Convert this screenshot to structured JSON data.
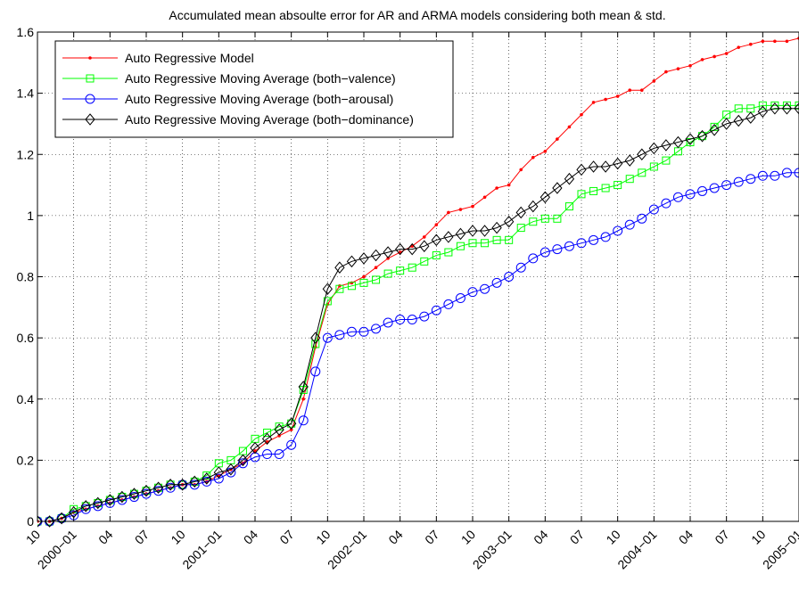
{
  "chart_data": {
    "type": "line",
    "title": "Accumulated mean absoulte error for AR and ARMA models considering both mean & std.",
    "xlabel": "",
    "ylabel": "",
    "ylim": [
      0,
      1.6
    ],
    "xlim": [
      "1999-10",
      "2005-01"
    ],
    "yticks": [
      "0",
      "0.2",
      "0.4",
      "0.6",
      "0.8",
      "1",
      "1.2",
      "1.4",
      "1.6"
    ],
    "xticks": [
      "10",
      "2000−01",
      "04",
      "07",
      "10",
      "2001−01",
      "04",
      "07",
      "10",
      "2002−01",
      "04",
      "07",
      "10",
      "2003−01",
      "04",
      "07",
      "10",
      "2004−01",
      "04",
      "07",
      "10",
      "2005−01"
    ],
    "grid": true,
    "legend_position": "top-left",
    "series": [
      {
        "name": "Auto Regressive Model",
        "color": "#ff0000",
        "marker": "dot",
        "x": [
          "1999-10",
          "1999-11",
          "1999-12",
          "2000-01",
          "2000-02",
          "2000-03",
          "2000-04",
          "2000-05",
          "2000-06",
          "2000-07",
          "2000-08",
          "2000-09",
          "2000-10",
          "2000-11",
          "2000-12",
          "2001-01",
          "2001-02",
          "2001-03",
          "2001-04",
          "2001-05",
          "2001-06",
          "2001-07",
          "2001-08",
          "2001-09",
          "2001-10",
          "2001-11",
          "2001-12",
          "2002-01",
          "2002-02",
          "2002-03",
          "2002-04",
          "2002-05",
          "2002-06",
          "2002-07",
          "2002-08",
          "2002-09",
          "2002-10",
          "2002-11",
          "2002-12",
          "2003-01",
          "2003-02",
          "2003-03",
          "2003-04",
          "2003-05",
          "2003-06",
          "2003-07",
          "2003-08",
          "2003-09",
          "2003-10",
          "2003-11",
          "2003-12",
          "2004-01",
          "2004-02",
          "2004-03",
          "2004-04",
          "2004-05",
          "2004-06",
          "2004-07",
          "2004-08",
          "2004-09",
          "2004-10",
          "2004-11",
          "2004-12",
          "2005-01"
        ],
        "y": [
          0,
          0,
          0.01,
          0.03,
          0.04,
          0.05,
          0.06,
          0.07,
          0.08,
          0.09,
          0.1,
          0.11,
          0.12,
          0.12,
          0.13,
          0.15,
          0.17,
          0.19,
          0.23,
          0.26,
          0.28,
          0.3,
          0.4,
          0.57,
          0.71,
          0.77,
          0.78,
          0.8,
          0.83,
          0.86,
          0.88,
          0.9,
          0.93,
          0.97,
          1.01,
          1.02,
          1.03,
          1.06,
          1.09,
          1.1,
          1.15,
          1.19,
          1.21,
          1.25,
          1.29,
          1.33,
          1.37,
          1.38,
          1.39,
          1.41,
          1.41,
          1.44,
          1.47,
          1.48,
          1.49,
          1.51,
          1.52,
          1.53,
          1.55,
          1.56,
          1.57,
          1.57,
          1.57,
          1.58
        ]
      },
      {
        "name": "Auto Regressive Moving Average (both−valence)",
        "color": "#00ff00",
        "marker": "square",
        "x": [
          "1999-10",
          "1999-11",
          "1999-12",
          "2000-01",
          "2000-02",
          "2000-03",
          "2000-04",
          "2000-05",
          "2000-06",
          "2000-07",
          "2000-08",
          "2000-09",
          "2000-10",
          "2000-11",
          "2000-12",
          "2001-01",
          "2001-02",
          "2001-03",
          "2001-04",
          "2001-05",
          "2001-06",
          "2001-07",
          "2001-08",
          "2001-09",
          "2001-10",
          "2001-11",
          "2001-12",
          "2002-01",
          "2002-02",
          "2002-03",
          "2002-04",
          "2002-05",
          "2002-06",
          "2002-07",
          "2002-08",
          "2002-09",
          "2002-10",
          "2002-11",
          "2002-12",
          "2003-01",
          "2003-02",
          "2003-03",
          "2003-04",
          "2003-05",
          "2003-06",
          "2003-07",
          "2003-08",
          "2003-09",
          "2003-10",
          "2003-11",
          "2003-12",
          "2004-01",
          "2004-02",
          "2004-03",
          "2004-04",
          "2004-05",
          "2004-06",
          "2004-07",
          "2004-08",
          "2004-09",
          "2004-10",
          "2004-11",
          "2004-12",
          "2005-01"
        ],
        "y": [
          0,
          0,
          0.01,
          0.04,
          0.05,
          0.06,
          0.07,
          0.08,
          0.09,
          0.1,
          0.11,
          0.12,
          0.12,
          0.13,
          0.15,
          0.19,
          0.2,
          0.23,
          0.27,
          0.29,
          0.31,
          0.32,
          0.43,
          0.58,
          0.72,
          0.76,
          0.77,
          0.78,
          0.79,
          0.81,
          0.82,
          0.83,
          0.85,
          0.87,
          0.88,
          0.9,
          0.91,
          0.91,
          0.92,
          0.92,
          0.96,
          0.98,
          0.99,
          0.99,
          1.03,
          1.07,
          1.08,
          1.09,
          1.1,
          1.12,
          1.14,
          1.16,
          1.18,
          1.21,
          1.24,
          1.26,
          1.29,
          1.33,
          1.35,
          1.35,
          1.36,
          1.36,
          1.36,
          1.36
        ]
      },
      {
        "name": "Auto Regressive Moving Average (both−arousal)",
        "color": "#0000ff",
        "marker": "circle",
        "x": [
          "1999-10",
          "1999-11",
          "1999-12",
          "2000-01",
          "2000-02",
          "2000-03",
          "2000-04",
          "2000-05",
          "2000-06",
          "2000-07",
          "2000-08",
          "2000-09",
          "2000-10",
          "2000-11",
          "2000-12",
          "2001-01",
          "2001-02",
          "2001-03",
          "2001-04",
          "2001-05",
          "2001-06",
          "2001-07",
          "2001-08",
          "2001-09",
          "2001-10",
          "2001-11",
          "2001-12",
          "2002-01",
          "2002-02",
          "2002-03",
          "2002-04",
          "2002-05",
          "2002-06",
          "2002-07",
          "2002-08",
          "2002-09",
          "2002-10",
          "2002-11",
          "2002-12",
          "2003-01",
          "2003-02",
          "2003-03",
          "2003-04",
          "2003-05",
          "2003-06",
          "2003-07",
          "2003-08",
          "2003-09",
          "2003-10",
          "2003-11",
          "2003-12",
          "2004-01",
          "2004-02",
          "2004-03",
          "2004-04",
          "2004-05",
          "2004-06",
          "2004-07",
          "2004-08",
          "2004-09",
          "2004-10",
          "2004-11",
          "2004-12",
          "2005-01"
        ],
        "y": [
          0,
          0,
          0.01,
          0.02,
          0.04,
          0.05,
          0.06,
          0.07,
          0.08,
          0.09,
          0.1,
          0.11,
          0.12,
          0.12,
          0.13,
          0.14,
          0.16,
          0.19,
          0.21,
          0.22,
          0.22,
          0.25,
          0.33,
          0.49,
          0.6,
          0.61,
          0.62,
          0.62,
          0.63,
          0.65,
          0.66,
          0.66,
          0.67,
          0.69,
          0.71,
          0.73,
          0.75,
          0.76,
          0.78,
          0.8,
          0.83,
          0.86,
          0.88,
          0.89,
          0.9,
          0.91,
          0.92,
          0.93,
          0.95,
          0.97,
          0.99,
          1.02,
          1.04,
          1.06,
          1.07,
          1.08,
          1.09,
          1.1,
          1.11,
          1.12,
          1.13,
          1.13,
          1.14,
          1.14
        ]
      },
      {
        "name": "Auto Regressive Moving Average (both−dominance)",
        "color": "#000000",
        "marker": "diamond",
        "x": [
          "1999-10",
          "1999-11",
          "1999-12",
          "2000-01",
          "2000-02",
          "2000-03",
          "2000-04",
          "2000-05",
          "2000-06",
          "2000-07",
          "2000-08",
          "2000-09",
          "2000-10",
          "2000-11",
          "2000-12",
          "2001-01",
          "2001-02",
          "2001-03",
          "2001-04",
          "2001-05",
          "2001-06",
          "2001-07",
          "2001-08",
          "2001-09",
          "2001-10",
          "2001-11",
          "2001-12",
          "2002-01",
          "2002-02",
          "2002-03",
          "2002-04",
          "2002-05",
          "2002-06",
          "2002-07",
          "2002-08",
          "2002-09",
          "2002-10",
          "2002-11",
          "2002-12",
          "2003-01",
          "2003-02",
          "2003-03",
          "2003-04",
          "2003-05",
          "2003-06",
          "2003-07",
          "2003-08",
          "2003-09",
          "2003-10",
          "2003-11",
          "2003-12",
          "2004-01",
          "2004-02",
          "2004-03",
          "2004-04",
          "2004-05",
          "2004-06",
          "2004-07",
          "2004-08",
          "2004-09",
          "2004-10",
          "2004-11",
          "2004-12",
          "2005-01"
        ],
        "y": [
          0,
          0,
          0.01,
          0.03,
          0.05,
          0.06,
          0.07,
          0.08,
          0.09,
          0.1,
          0.11,
          0.12,
          0.12,
          0.13,
          0.14,
          0.16,
          0.17,
          0.2,
          0.24,
          0.27,
          0.3,
          0.32,
          0.44,
          0.6,
          0.76,
          0.83,
          0.85,
          0.86,
          0.87,
          0.88,
          0.89,
          0.89,
          0.9,
          0.92,
          0.93,
          0.94,
          0.95,
          0.95,
          0.96,
          0.98,
          1.01,
          1.03,
          1.06,
          1.09,
          1.12,
          1.15,
          1.16,
          1.16,
          1.17,
          1.18,
          1.2,
          1.22,
          1.23,
          1.24,
          1.25,
          1.26,
          1.28,
          1.3,
          1.31,
          1.32,
          1.34,
          1.35,
          1.35,
          1.35
        ]
      }
    ]
  }
}
